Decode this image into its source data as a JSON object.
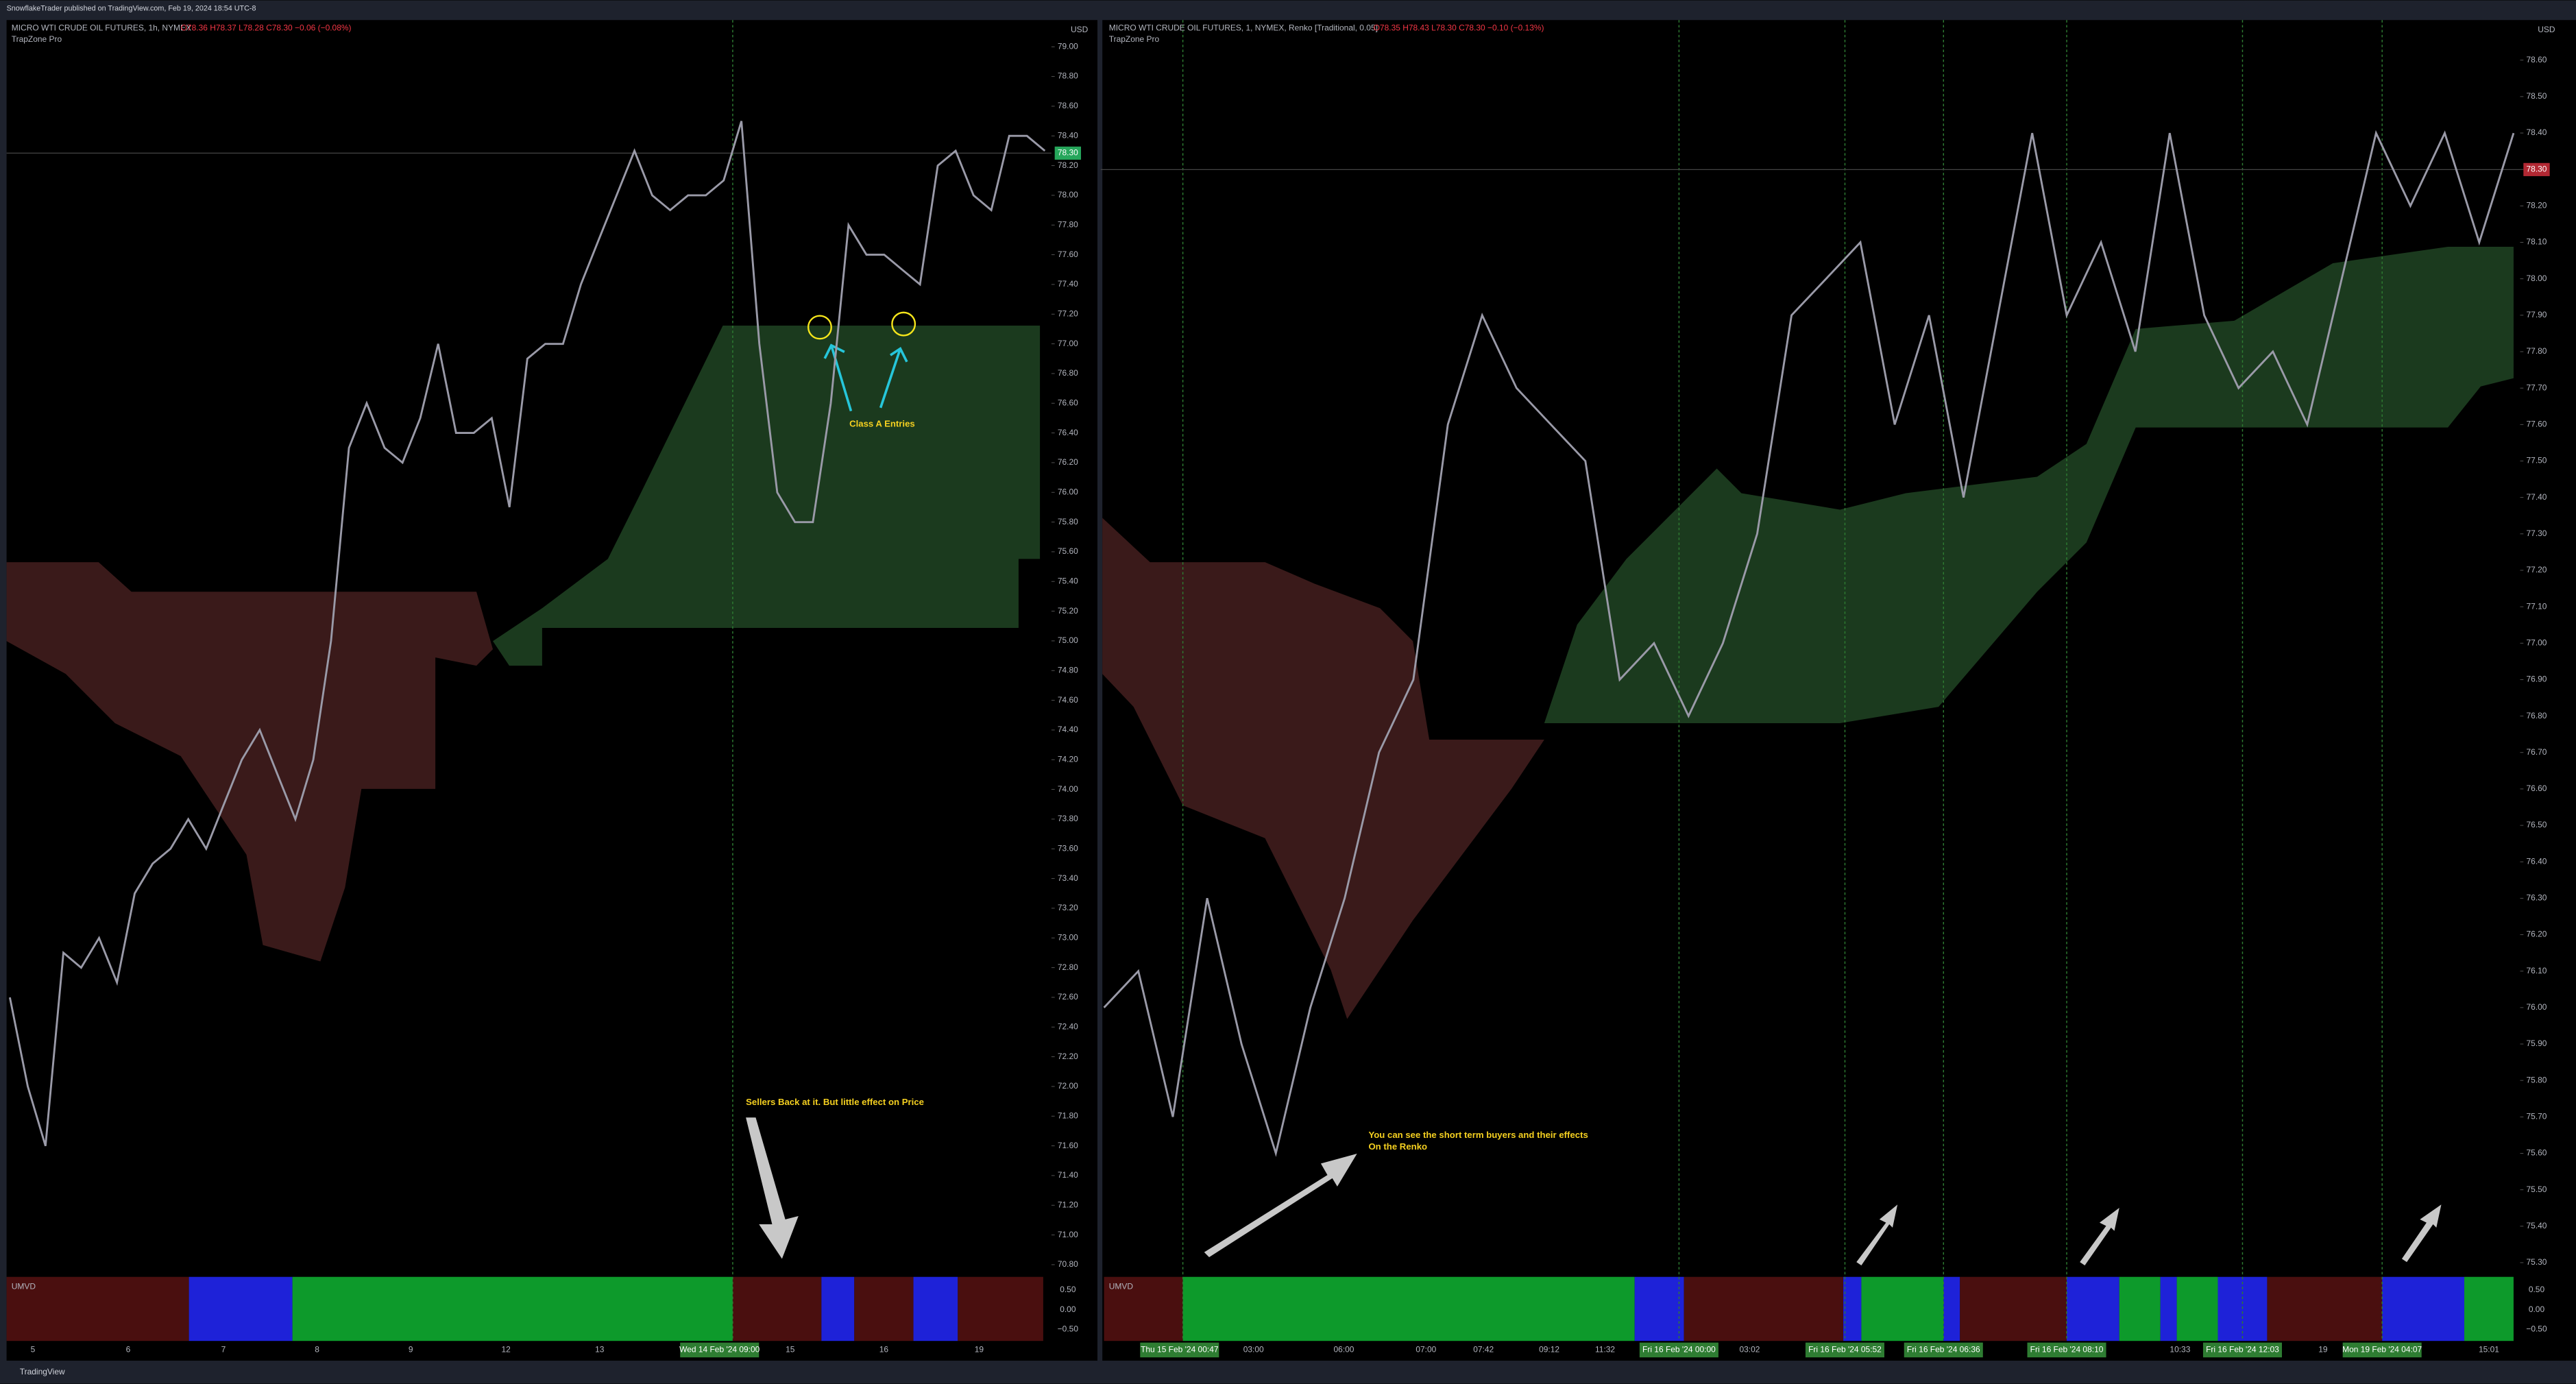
{
  "header": {
    "publisher": "SnowflakeTrader published on TradingView.com, Feb 19, 2024 18:54 UTC-8"
  },
  "footer": {
    "brand": "TradingView"
  },
  "panels": [
    {
      "symbol": "MICRO WTI CRUDE OIL FUTURES, 1h, NYMEX",
      "ohlc": "O78.36 H78.37 L78.28 C78.30 −0.06 (−0.08%)",
      "indicator": "TrapZone Pro",
      "currency": "USD",
      "last_price": "78.30",
      "oscillator": "UMVD",
      "osc_ticks": [
        "0.50",
        "0.00",
        "−0.50"
      ],
      "ylim": [
        70.74,
        79.18
      ],
      "yticks": [
        {
          "value": 79,
          "label": "79.00"
        },
        {
          "value": 78.8,
          "label": "78.80"
        },
        {
          "value": 78.6,
          "label": "78.60"
        },
        {
          "value": 78.4,
          "label": "78.40"
        },
        {
          "value": 78.2,
          "label": "78.20"
        },
        {
          "value": 78,
          "label": "78.00"
        },
        {
          "value": 77.8,
          "label": "77.80"
        },
        {
          "value": 77.6,
          "label": "77.60"
        },
        {
          "value": 77.4,
          "label": "77.40"
        },
        {
          "value": 77.2,
          "label": "77.20"
        },
        {
          "value": 77,
          "label": "77.00"
        },
        {
          "value": 76.8,
          "label": "76.80"
        },
        {
          "value": 76.6,
          "label": "76.60"
        },
        {
          "value": 76.4,
          "label": "76.40"
        },
        {
          "value": 76.2,
          "label": "76.20"
        },
        {
          "value": 76,
          "label": "76.00"
        },
        {
          "value": 75.8,
          "label": "75.80"
        },
        {
          "value": 75.6,
          "label": "75.60"
        },
        {
          "value": 75.4,
          "label": "75.40"
        },
        {
          "value": 75.2,
          "label": "75.20"
        },
        {
          "value": 75,
          "label": "75.00"
        },
        {
          "value": 74.8,
          "label": "74.80"
        },
        {
          "value": 74.6,
          "label": "74.60"
        },
        {
          "value": 74.4,
          "label": "74.40"
        },
        {
          "value": 74.2,
          "label": "74.20"
        },
        {
          "value": 74,
          "label": "74.00"
        },
        {
          "value": 73.8,
          "label": "73.80"
        },
        {
          "value": 73.6,
          "label": "73.60"
        },
        {
          "value": 73.4,
          "label": "73.40"
        },
        {
          "value": 73.2,
          "label": "73.20"
        },
        {
          "value": 73,
          "label": "73.00"
        },
        {
          "value": 72.8,
          "label": "72.80"
        },
        {
          "value": 72.6,
          "label": "72.60"
        },
        {
          "value": 72.4,
          "label": "72.40"
        },
        {
          "value": 72.2,
          "label": "72.20"
        },
        {
          "value": 72,
          "label": "72.00"
        },
        {
          "value": 71.8,
          "label": "71.80"
        },
        {
          "value": 71.6,
          "label": "71.60"
        },
        {
          "value": 71.4,
          "label": "71.40"
        },
        {
          "value": 71.2,
          "label": "71.20"
        },
        {
          "value": 71,
          "label": "71.00"
        },
        {
          "value": 70.8,
          "label": "70.80"
        }
      ],
      "xlabels": [
        "5",
        "6",
        "7",
        "8",
        "9",
        "12",
        "13",
        "Wed 14 Feb '24  09:00",
        "15",
        "16",
        "19"
      ],
      "price": [
        72.6,
        72.0,
        71.6,
        72.9,
        72.8,
        73.0,
        72.7,
        73.3,
        73.5,
        73.6,
        73.8,
        73.6,
        73.9,
        74.2,
        74.4,
        74.1,
        73.8,
        74.2,
        75.0,
        76.3,
        76.6,
        76.3,
        76.2,
        76.5,
        77.0,
        76.4,
        76.4,
        76.5,
        75.9,
        76.9,
        77.0,
        77.0,
        77.4,
        77.7,
        78.0,
        78.3,
        78.0,
        77.9,
        78.0,
        78.0,
        78.1,
        78.5,
        77.0,
        76.0,
        75.8,
        75.8,
        76.6,
        77.8,
        77.6,
        77.6,
        77.5,
        77.4,
        78.2,
        78.3,
        78.0,
        77.9,
        78.4,
        78.4,
        78.3
      ],
      "annotations": [
        "Class A Entries",
        "Sellers Back at it. But little effect on Price"
      ]
    },
    {
      "symbol": "MICRO WTI CRUDE OIL FUTURES, 1, NYMEX, Renko [Traditional, 0.05]",
      "ohlc": "O78.35 H78.43 L78.30 C78.30 −0.10 (−0.13%)",
      "indicator": "TrapZone Pro",
      "currency": "USD",
      "last_price": "78.30",
      "oscillator": "UMVD",
      "osc_ticks": [
        "0.50",
        "0.00",
        "−0.50"
      ],
      "ylim": [
        75.27,
        78.71
      ],
      "yticks": [
        {
          "value": 78.6,
          "label": "78.60"
        },
        {
          "value": 78.5,
          "label": "78.50"
        },
        {
          "value": 78.4,
          "label": "78.40"
        },
        {
          "value": 78.3,
          "label": "78.30"
        },
        {
          "value": 78.2,
          "label": "78.20"
        },
        {
          "value": 78.1,
          "label": "78.10"
        },
        {
          "value": 78,
          "label": "78.00"
        },
        {
          "value": 77.9,
          "label": "77.90"
        },
        {
          "value": 77.8,
          "label": "77.80"
        },
        {
          "value": 77.7,
          "label": "77.70"
        },
        {
          "value": 77.6,
          "label": "77.60"
        },
        {
          "value": 77.5,
          "label": "77.50"
        },
        {
          "value": 77.4,
          "label": "77.40"
        },
        {
          "value": 77.3,
          "label": "77.30"
        },
        {
          "value": 77.2,
          "label": "77.20"
        },
        {
          "value": 77.1,
          "label": "77.10"
        },
        {
          "value": 77,
          "label": "77.00"
        },
        {
          "value": 76.9,
          "label": "76.90"
        },
        {
          "value": 76.8,
          "label": "76.80"
        },
        {
          "value": 76.7,
          "label": "76.70"
        },
        {
          "value": 76.6,
          "label": "76.60"
        },
        {
          "value": 76.5,
          "label": "76.50"
        },
        {
          "value": 76.4,
          "label": "76.40"
        },
        {
          "value": 76.3,
          "label": "76.30"
        },
        {
          "value": 76.2,
          "label": "76.20"
        },
        {
          "value": 76.1,
          "label": "76.10"
        },
        {
          "value": 76,
          "label": "76.00"
        },
        {
          "value": 75.9,
          "label": "75.90"
        },
        {
          "value": 75.8,
          "label": "75.80"
        },
        {
          "value": 75.7,
          "label": "75.70"
        },
        {
          "value": 75.6,
          "label": "75.60"
        },
        {
          "value": 75.5,
          "label": "75.50"
        },
        {
          "value": 75.4,
          "label": "75.40"
        },
        {
          "value": 75.3,
          "label": "75.30"
        }
      ],
      "xlabels": [
        "Thu 15 Feb '24  00:47",
        "03:00",
        "06:00",
        "07:00",
        "07:42",
        "09:12",
        "11:32",
        "Fri 16 Feb '24  00:00",
        "03:02",
        "Fri 16 Feb '24  05:52",
        "Fri 16 Feb '24  06:36",
        "Fri 16 Feb '24  08:10",
        "10:33",
        "Fri 16 Feb '24  12:03",
        "19",
        "Mon 19 Feb '24  04:07",
        "15:01"
      ],
      "price": [
        76.0,
        76.1,
        75.7,
        76.3,
        75.9,
        75.6,
        76.0,
        76.3,
        76.7,
        76.9,
        77.6,
        77.9,
        77.7,
        77.6,
        77.5,
        76.9,
        77.0,
        76.8,
        77.0,
        77.3,
        77.9,
        78.0,
        78.1,
        77.6,
        77.9,
        77.4,
        77.9,
        78.4,
        77.9,
        78.1,
        77.8,
        78.4,
        77.9,
        77.7,
        77.8,
        77.6,
        78.0,
        78.4,
        78.2,
        78.4,
        78.1,
        78.4
      ],
      "annotations": [
        "You can see the short term buyers and their effects",
        "On the Renko"
      ]
    }
  ]
}
